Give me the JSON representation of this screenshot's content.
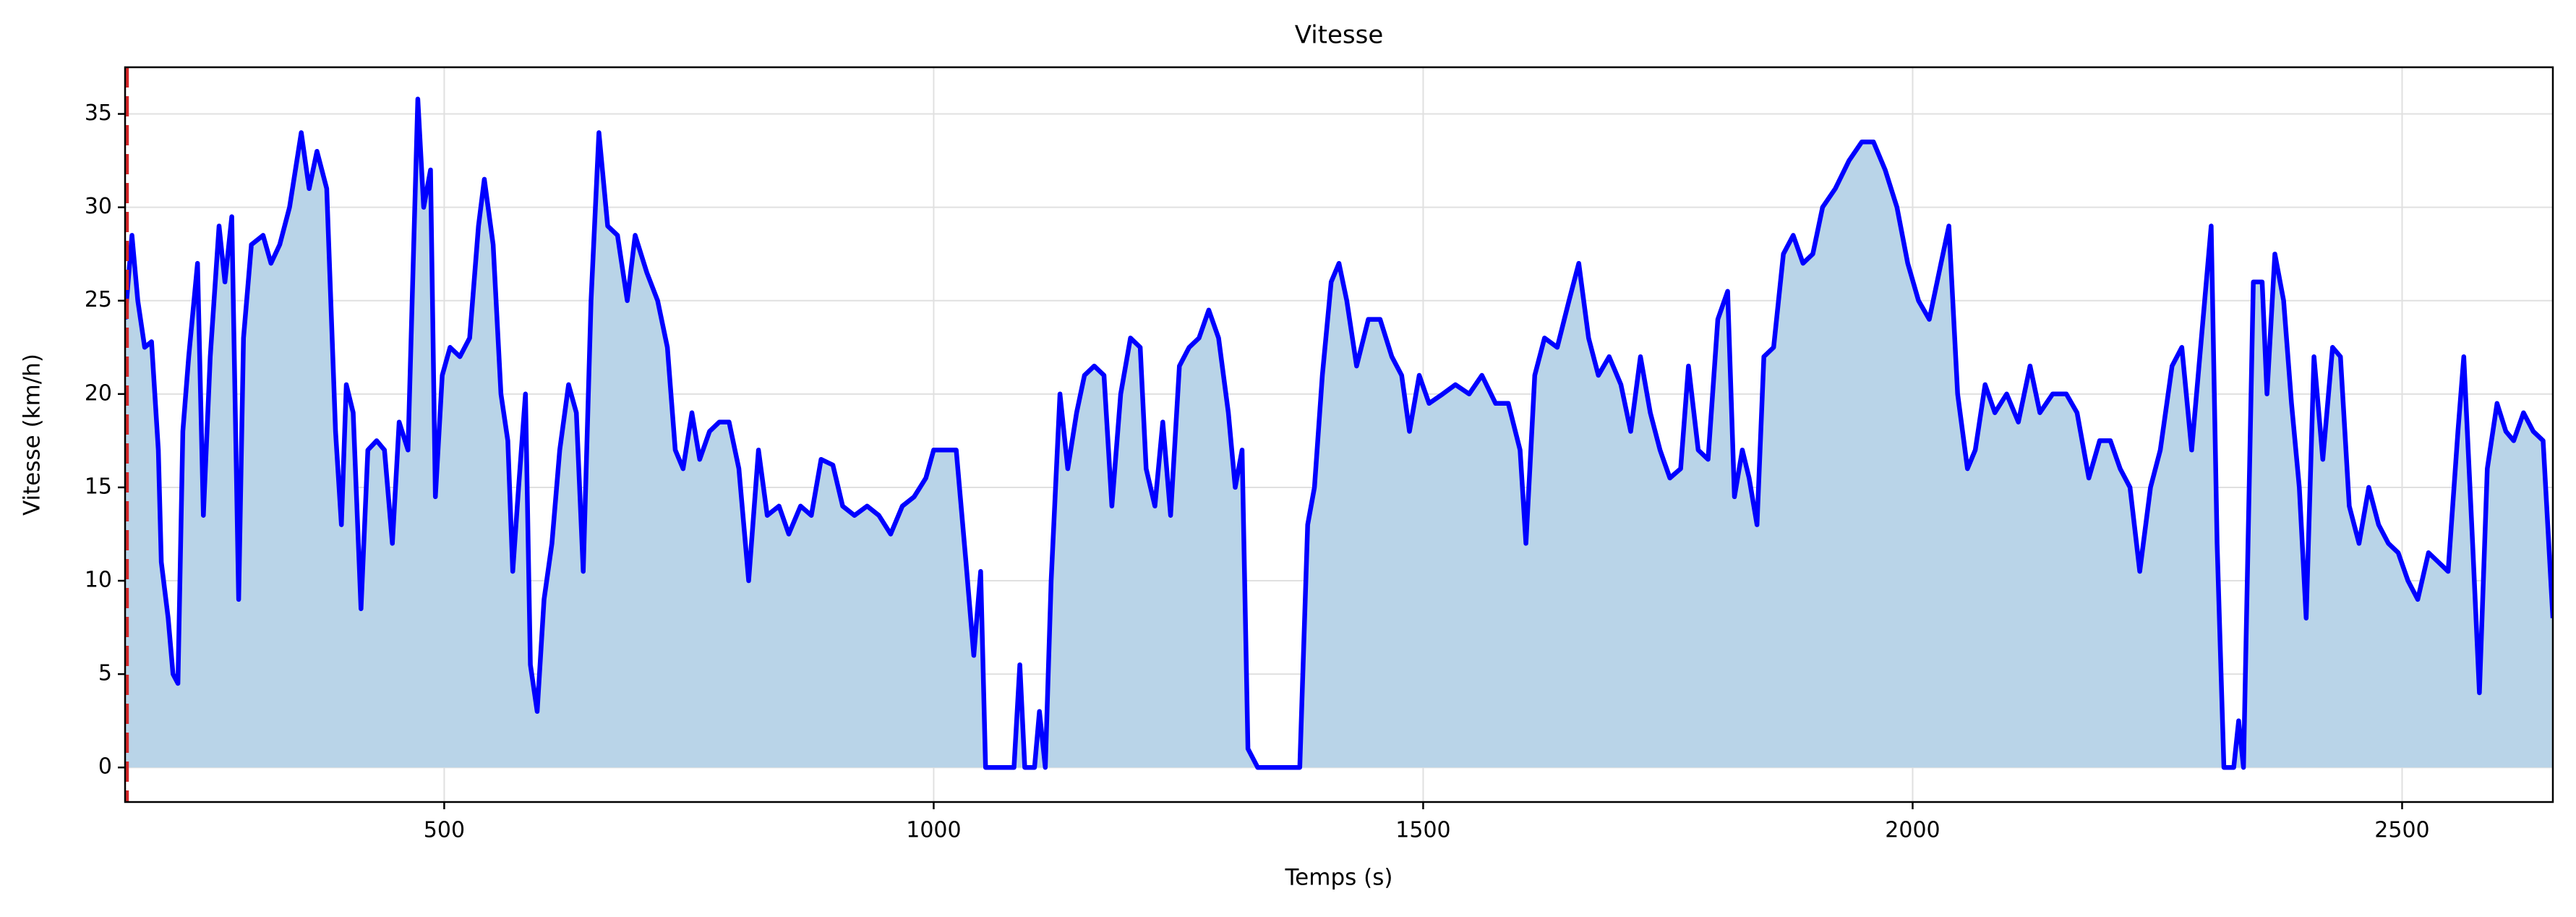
{
  "chart_data": {
    "type": "line",
    "title": "Vitesse",
    "x_label": "Temps (s)",
    "y_label": "Vitesse (km/h)",
    "x": [
      174,
      181,
      187,
      194,
      201,
      208,
      211,
      218,
      223,
      228,
      233,
      239,
      248,
      254,
      261,
      270,
      276,
      283,
      290,
      295,
      303,
      315,
      323,
      332,
      342,
      354,
      362,
      370,
      380,
      389,
      395,
      400,
      407,
      415,
      422,
      431,
      439,
      447,
      454,
      463,
      473,
      479,
      486,
      491,
      498,
      506,
      516,
      526,
      535,
      541,
      550,
      558,
      565,
      570,
      576,
      583,
      588,
      595,
      602,
      610,
      618,
      627,
      635,
      642,
      650,
      658,
      667,
      677,
      687,
      695,
      707,
      718,
      728,
      736,
      744,
      753,
      761,
      771,
      781,
      791,
      801,
      811,
      821,
      830,
      842,
      852,
      864,
      875,
      885,
      897,
      907,
      919,
      932,
      944,
      956,
      968,
      980,
      992,
      1000,
      1011,
      1023,
      1033,
      1041,
      1048,
      1053,
      1070,
      1082,
      1088,
      1093,
      1103,
      1108,
      1114,
      1120,
      1129,
      1137,
      1146,
      1154,
      1164,
      1174,
      1182,
      1191,
      1201,
      1211,
      1217,
      1226,
      1234,
      1242,
      1251,
      1261,
      1271,
      1281,
      1291,
      1301,
      1308,
      1315,
      1321,
      1331,
      1355,
      1374,
      1382,
      1389,
      1397,
      1406,
      1414,
      1422,
      1432,
      1444,
      1456,
      1468,
      1478,
      1486,
      1496,
      1506,
      1520,
      1533,
      1547,
      1560,
      1574,
      1587,
      1599,
      1605,
      1614,
      1624,
      1637,
      1649,
      1659,
      1669,
      1679,
      1690,
      1702,
      1712,
      1722,
      1732,
      1742,
      1752,
      1763,
      1771,
      1781,
      1791,
      1801,
      1811,
      1818,
      1826,
      1833,
      1841,
      1848,
      1858,
      1868,
      1878,
      1888,
      1898,
      1908,
      1921,
      1935,
      1948,
      1960,
      1972,
      1984,
      1995,
      2006,
      2017,
      2029,
      2037,
      2046,
      2056,
      2064,
      2074,
      2084,
      2096,
      2108,
      2120,
      2130,
      2143,
      2157,
      2168,
      2180,
      2191,
      2202,
      2212,
      2222,
      2232,
      2243,
      2253,
      2265,
      2275,
      2285,
      2295,
      2305,
      2311,
      2318,
      2328,
      2333,
      2338,
      2348,
      2357,
      2362,
      2370,
      2379,
      2387,
      2395,
      2402,
      2410,
      2419,
      2429,
      2437,
      2446,
      2456,
      2466,
      2476,
      2486,
      2496,
      2506,
      2516,
      2527,
      2537,
      2547,
      2557,
      2563,
      2572,
      2579,
      2587,
      2597,
      2606,
      2614,
      2624,
      2634,
      2644,
      2654
    ],
    "values": [
      24,
      28.5,
      25,
      22.5,
      22.8,
      17,
      11,
      8,
      5,
      4.5,
      18,
      22,
      27,
      13.5,
      22,
      29,
      26,
      29.5,
      9,
      23,
      28,
      28.5,
      27,
      28,
      30,
      34,
      31,
      33,
      31,
      18,
      13,
      20.5,
      19,
      8.5,
      17,
      17.5,
      17,
      12,
      18.5,
      17,
      35.8,
      30,
      32,
      14.5,
      21,
      22.5,
      22,
      23,
      29,
      31.5,
      28,
      20,
      17.5,
      10.5,
      15,
      20,
      5.5,
      3,
      9,
      12,
      17,
      20.5,
      19,
      10.5,
      25,
      34,
      29,
      28.5,
      25,
      28.5,
      26.5,
      25,
      22.5,
      17,
      16,
      19,
      16.5,
      18,
      18.5,
      18.5,
      16,
      10,
      17,
      13.5,
      14,
      12.5,
      14,
      13.5,
      16.5,
      16.2,
      14,
      13.5,
      14,
      13.5,
      12.5,
      14,
      14.5,
      15.5,
      17,
      17,
      17,
      11,
      6,
      10.5,
      0,
      0,
      0,
      5.5,
      0,
      0,
      3,
      0,
      10,
      20,
      16,
      19,
      21,
      21.5,
      21,
      14,
      20,
      23,
      22.5,
      16,
      14,
      18.5,
      13.5,
      21.5,
      22.5,
      23,
      24.5,
      23,
      19,
      15,
      17,
      1,
      0,
      0,
      0,
      13,
      15,
      21,
      26,
      27,
      25,
      21.5,
      24,
      24,
      22,
      21,
      18,
      21,
      19.5,
      20,
      20.5,
      20,
      21,
      19.5,
      19.5,
      17,
      12,
      21,
      23,
      22.5,
      25,
      27,
      23,
      21,
      22,
      20.5,
      18,
      22,
      19,
      17,
      15.5,
      16,
      21.5,
      17,
      16.5,
      24,
      25.5,
      14.5,
      17,
      15.5,
      13,
      22,
      22.5,
      27.5,
      28.5,
      27,
      27.5,
      30,
      31,
      32.5,
      33.5,
      33.5,
      32,
      30,
      27,
      25,
      24,
      27,
      29,
      20,
      16,
      17,
      20.5,
      19,
      20,
      18.5,
      21.5,
      19,
      20,
      20,
      19,
      15.5,
      17.5,
      17.5,
      16,
      15,
      10.5,
      15,
      17,
      21.5,
      22.5,
      17,
      23,
      29,
      12,
      0,
      0,
      2.5,
      0,
      26,
      26,
      20,
      27.5,
      25,
      19.5,
      15,
      8,
      22,
      16.5,
      22.5,
      22,
      14,
      12,
      15,
      13,
      12,
      11.5,
      10,
      9,
      11.5,
      11,
      10.5,
      18,
      22,
      12,
      4,
      16,
      19.5,
      18,
      17.5,
      19,
      18,
      17.5,
      8
    ],
    "color": "#0000ff",
    "fill_color": "#b9d4e8",
    "vline": {
      "x": 176,
      "color": "#d62728"
    },
    "xlim": [
      174,
      2654
    ],
    "ylim": [
      -1.85,
      37.5
    ],
    "xticks": [
      500,
      1000,
      1500,
      2000,
      2500
    ],
    "yticks": [
      0,
      5,
      10,
      15,
      20,
      25,
      30,
      35
    ],
    "grid": true
  }
}
